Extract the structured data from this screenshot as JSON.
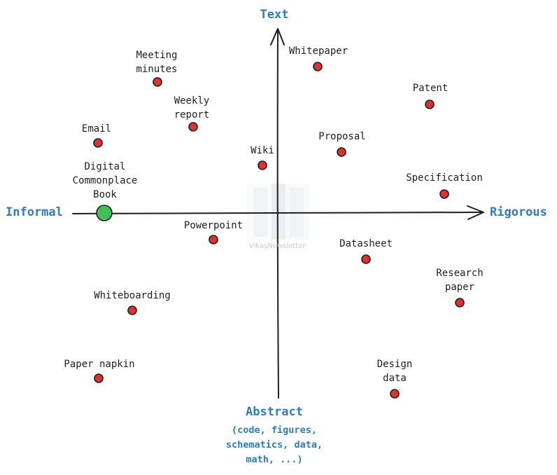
{
  "axes": {
    "top": "Text",
    "bottom": "Abstract",
    "bottom_note": [
      "(code, figures,",
      "schematics, data,",
      "math, ...)"
    ],
    "left": "Informal",
    "right": "Rigorous"
  },
  "colors": {
    "axis_label": "#2f7bc2",
    "point_fill": "#e03131",
    "highlight_fill": "#40c057",
    "line": "#1e1e1e"
  },
  "points": [
    {
      "label": "Whitepaper",
      "highlight": false
    },
    {
      "label": "Meeting\nminutes",
      "highlight": false
    },
    {
      "label": "Patent",
      "highlight": false
    },
    {
      "label": "Weekly\nreport",
      "highlight": false
    },
    {
      "label": "Proposal",
      "highlight": false
    },
    {
      "label": "Email",
      "highlight": false
    },
    {
      "label": "Wiki",
      "highlight": false
    },
    {
      "label": "Specification",
      "highlight": false
    },
    {
      "label": "Digital\nCommonplace\nBook",
      "highlight": true
    },
    {
      "label": "Powerpoint",
      "highlight": false
    },
    {
      "label": "Datasheet",
      "highlight": false
    },
    {
      "label": "Research\npaper",
      "highlight": false
    },
    {
      "label": "Whiteboarding",
      "highlight": false
    },
    {
      "label": "Paper napkin",
      "highlight": false
    },
    {
      "label": "Design\ndata",
      "highlight": false
    }
  ],
  "watermark": "VikasNewsletter"
}
